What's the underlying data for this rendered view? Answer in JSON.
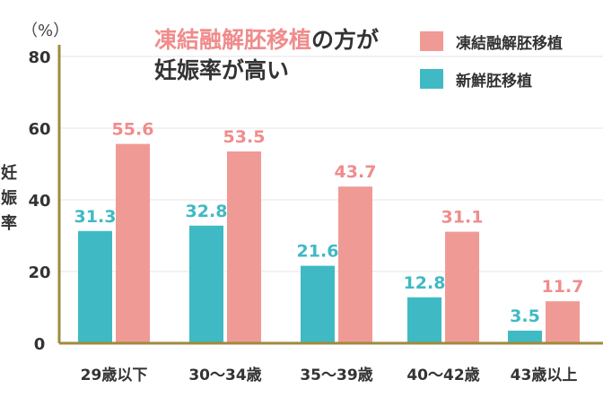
{
  "title": {
    "highlight": "凍結融解胚移植",
    "rest_line1": "の方が",
    "line2": "妊娠率が高い"
  },
  "unit_label": "（%）",
  "ylabel_chars": [
    "妊",
    "娠",
    "率"
  ],
  "colors": {
    "frozen": "#f09a96",
    "fresh": "#3fbac4",
    "axis": "#a08a3c",
    "grid": "#e4e4e4",
    "frozen_text": "#f08c8c",
    "fresh_text": "#3fbac4"
  },
  "chart_data": {
    "type": "bar",
    "categories": [
      "29歳以下",
      "30〜34歳",
      "35〜39歳",
      "40〜42歳",
      "43歳以上"
    ],
    "series": [
      {
        "name": "新鮮胚移植",
        "values": [
          31.3,
          32.8,
          21.6,
          12.8,
          3.5
        ]
      },
      {
        "name": "凍結融解胚移植",
        "values": [
          55.6,
          53.5,
          43.7,
          31.1,
          11.7
        ]
      }
    ],
    "yticks": [
      0,
      20,
      40,
      60,
      80
    ],
    "ylim": [
      0,
      80
    ],
    "ylabel": "妊娠率",
    "grid": true,
    "legend_position": "top-right"
  }
}
